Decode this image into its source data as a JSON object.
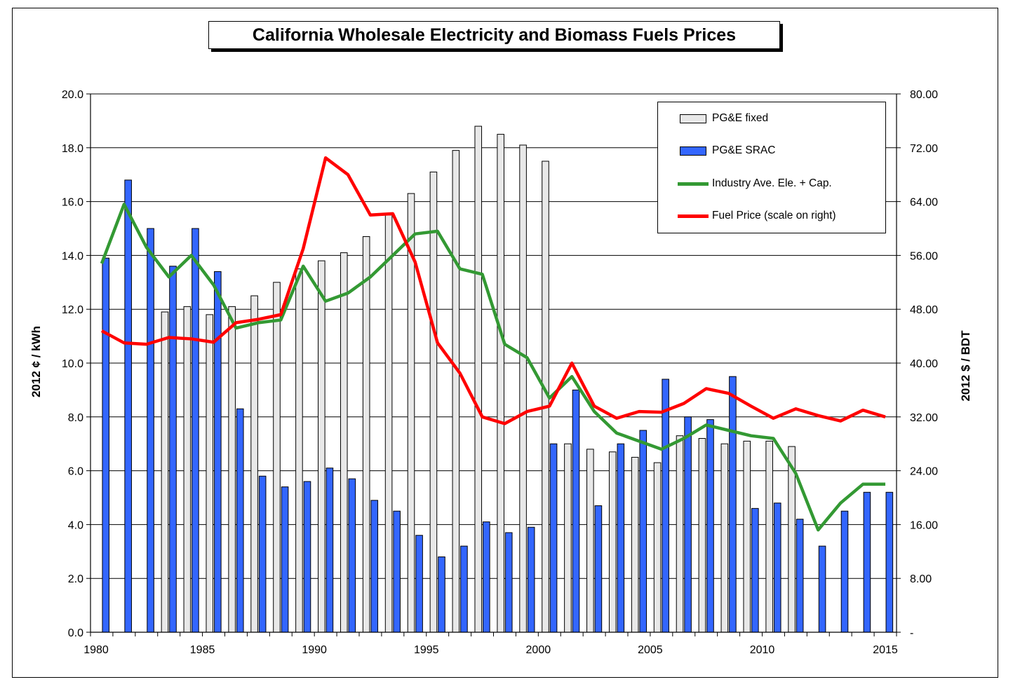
{
  "chart_data": {
    "type": "bar",
    "title": "California Wholesale Electricity and Biomass Fuels Prices",
    "ylabel": "2012 ¢ / kWh",
    "ylabel_right": "2012 $ / BDT",
    "ylim": [
      0,
      20
    ],
    "ylim_right": [
      0,
      80
    ],
    "xlim": [
      1980,
      2015
    ],
    "x_ticks": [
      "1980",
      "1985",
      "1990",
      "1995",
      "2000",
      "2005",
      "2010",
      "2015"
    ],
    "y_ticks": [
      "0.0",
      "2.0",
      "4.0",
      "6.0",
      "8.0",
      "10.0",
      "12.0",
      "14.0",
      "16.0",
      "18.0",
      "20.0"
    ],
    "y_ticks_right": [
      "-",
      "8.00",
      "16.00",
      "24.00",
      "32.00",
      "40.00",
      "48.00",
      "56.00",
      "64.00",
      "72.00",
      "80.00"
    ],
    "grid": true,
    "legend_position": "top-right",
    "years": [
      1980,
      1981,
      1982,
      1983,
      1984,
      1985,
      1986,
      1987,
      1988,
      1989,
      1990,
      1991,
      1992,
      1993,
      1994,
      1995,
      1996,
      1997,
      1998,
      1999,
      2000,
      2001,
      2002,
      2003,
      2004,
      2005,
      2006,
      2007,
      2008,
      2009,
      2010,
      2011,
      2012,
      2013,
      2014,
      2015
    ],
    "series": [
      {
        "name": "PG&E fixed",
        "kind": "bar",
        "color": "#e8e8e8",
        "values": [
          null,
          null,
          null,
          11.9,
          12.1,
          11.8,
          12.1,
          12.5,
          13.0,
          13.5,
          13.8,
          14.1,
          14.7,
          15.5,
          16.3,
          17.1,
          17.9,
          18.8,
          18.5,
          18.1,
          17.5,
          7.0,
          6.8,
          6.7,
          6.5,
          6.3,
          7.3,
          7.2,
          7.0,
          7.1,
          7.1,
          6.9,
          null,
          null,
          null,
          null
        ]
      },
      {
        "name": "PG&E SRAC",
        "kind": "bar",
        "color": "#3366ff",
        "values": [
          13.9,
          16.8,
          15.0,
          13.6,
          15.0,
          13.4,
          8.3,
          5.8,
          5.4,
          5.6,
          6.1,
          5.7,
          4.9,
          4.5,
          3.6,
          2.8,
          3.2,
          4.1,
          3.7,
          3.9,
          7.0,
          9.0,
          4.7,
          7.0,
          7.5,
          9.4,
          8.0,
          7.9,
          9.5,
          4.6,
          4.8,
          4.2,
          3.2,
          4.5,
          5.2,
          5.2
        ]
      },
      {
        "name": "Industry Ave. Ele. + Cap.",
        "kind": "line",
        "axis": "left",
        "color": "#339933",
        "values": [
          13.7,
          15.9,
          14.3,
          13.2,
          14.0,
          12.9,
          11.3,
          11.5,
          11.6,
          13.6,
          12.3,
          12.6,
          13.2,
          14.0,
          14.8,
          14.9,
          13.5,
          13.3,
          10.7,
          10.2,
          8.7,
          9.5,
          8.2,
          7.4,
          7.1,
          6.8,
          7.2,
          7.7,
          7.5,
          7.3,
          7.2,
          5.9,
          3.8,
          4.8,
          5.5,
          5.5
        ]
      },
      {
        "name": "Fuel Price (scale on right)",
        "kind": "line",
        "axis": "right",
        "color": "#ff0000",
        "values": [
          44.8,
          43.0,
          42.8,
          43.8,
          43.6,
          43.1,
          46.0,
          46.5,
          47.2,
          57.0,
          70.5,
          68.0,
          62.0,
          62.2,
          55.0,
          43.0,
          38.5,
          32.0,
          31.0,
          32.8,
          33.6,
          40.0,
          33.6,
          31.8,
          32.8,
          32.7,
          34.0,
          36.2,
          35.5,
          33.6,
          31.8,
          33.2,
          32.2,
          31.4,
          33.0,
          32.0
        ]
      }
    ]
  }
}
